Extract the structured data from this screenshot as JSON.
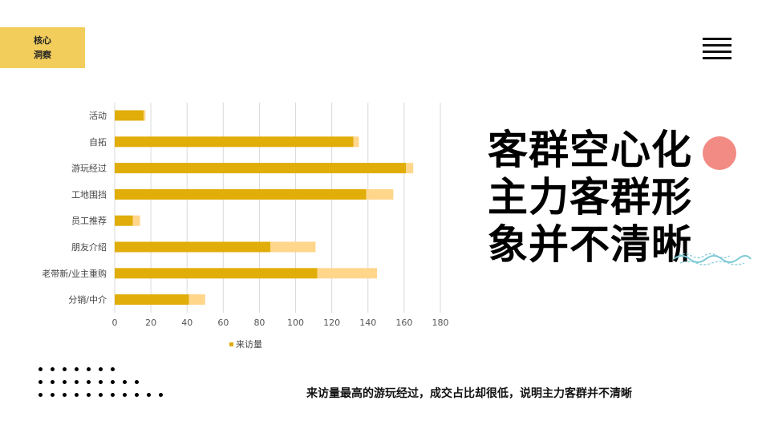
{
  "tag": {
    "line1": "核心",
    "line2": "洞察"
  },
  "headline": {
    "line1": "客群空心化",
    "line2": "主力客群形",
    "line3": "象并不清晰"
  },
  "note": "来访量最高的游玩经过，成交占比却很低，说明主力客群并不清晰",
  "icons": {
    "menu": "hamburger-menu-icon",
    "wave": "wave-decoration-icon"
  },
  "colors": {
    "accent": "#f2cd5c",
    "bar_primary": "#e0ad09",
    "bar_secondary": "#ffd68a",
    "circle": "#f28b84",
    "wave": "#7ec9d6"
  },
  "chart_data": {
    "type": "bar",
    "orientation": "horizontal",
    "stacked": true,
    "categories": [
      "活动",
      "自拓",
      "游玩经过",
      "工地围挡",
      "员工推荐",
      "朋友介绍",
      "老带新/业主重购",
      "分销/中介"
    ],
    "series": [
      {
        "name": "来访量",
        "values": [
          16,
          132,
          161,
          139,
          10,
          86,
          112,
          41
        ],
        "color": "#e0ad09"
      },
      {
        "values": [
          1,
          3,
          4,
          15,
          4,
          25,
          33,
          9
        ],
        "color": "#ffd68a"
      }
    ],
    "xlim": [
      0,
      180
    ],
    "xticks": [
      0,
      20,
      40,
      60,
      80,
      100,
      120,
      140,
      160,
      180
    ],
    "grid": true,
    "legend_position": "bottom"
  }
}
